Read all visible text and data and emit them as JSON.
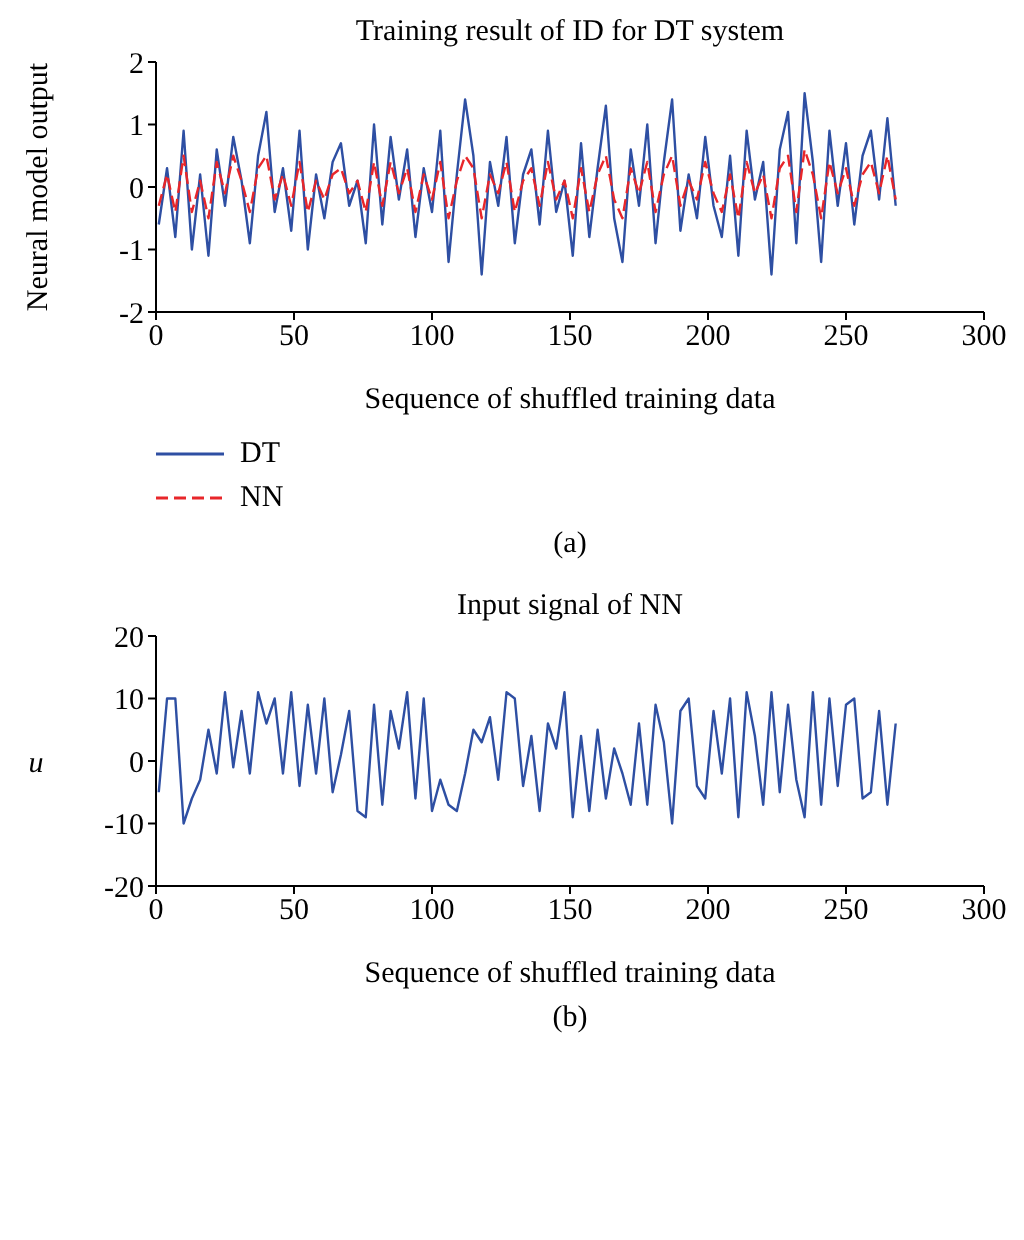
{
  "chart_data": [
    {
      "type": "line",
      "title": "Training result of ID for DT system",
      "xlabel": "Sequence of shuffled training data",
      "ylabel": "Neural model output",
      "xlim": [
        0,
        300
      ],
      "xticks": [
        0,
        50,
        100,
        150,
        200,
        250,
        300
      ],
      "ylim": [
        -2,
        2
      ],
      "yticks": [
        -2,
        -1,
        0,
        1,
        2
      ],
      "legend": "bottom left",
      "marker": "none",
      "annotations": [
        "(a)"
      ],
      "x": [
        1,
        4,
        7,
        10,
        13,
        16,
        19,
        22,
        25,
        28,
        31,
        34,
        37,
        40,
        43,
        46,
        49,
        52,
        55,
        58,
        61,
        64,
        67,
        70,
        73,
        76,
        79,
        82,
        85,
        88,
        91,
        94,
        97,
        100,
        103,
        106,
        109,
        112,
        115,
        118,
        121,
        124,
        127,
        130,
        133,
        136,
        139,
        142,
        145,
        148,
        151,
        154,
        157,
        160,
        163,
        166,
        169,
        172,
        175,
        178,
        181,
        184,
        187,
        190,
        193,
        196,
        199,
        202,
        205,
        208,
        211,
        214,
        217,
        220,
        223,
        226,
        229,
        232,
        235,
        238,
        241,
        244,
        247,
        250,
        253,
        256,
        259,
        262,
        265,
        268
      ],
      "series": [
        {
          "name": "DT",
          "color": "#2e4fa3",
          "line_style": "solid",
          "values": [
            -0.6,
            0.3,
            -0.8,
            0.9,
            -1.0,
            0.2,
            -1.1,
            0.6,
            -0.3,
            0.8,
            0.1,
            -0.9,
            0.5,
            1.2,
            -0.4,
            0.3,
            -0.7,
            0.9,
            -1.0,
            0.2,
            -0.5,
            0.4,
            0.7,
            -0.3,
            0.1,
            -0.9,
            1.0,
            -0.6,
            0.8,
            -0.2,
            0.6,
            -0.8,
            0.3,
            -0.4,
            0.9,
            -1.2,
            0.2,
            1.4,
            0.5,
            -1.4,
            0.4,
            -0.3,
            0.8,
            -0.9,
            0.2,
            0.6,
            -0.6,
            0.9,
            -0.4,
            0.1,
            -1.1,
            0.7,
            -0.8,
            0.3,
            1.3,
            -0.5,
            -1.2,
            0.6,
            -0.3,
            1.0,
            -0.9,
            0.4,
            1.4,
            -0.7,
            0.2,
            -0.5,
            0.8,
            -0.3,
            -0.8,
            0.5,
            -1.1,
            0.9,
            -0.2,
            0.4,
            -1.4,
            0.6,
            1.2,
            -0.9,
            1.5,
            0.4,
            -1.2,
            0.9,
            -0.3,
            0.7,
            -0.6,
            0.5,
            0.9,
            -0.2,
            1.1,
            -0.3
          ]
        },
        {
          "name": "NN",
          "color": "#e8262a",
          "line_style": "dashed",
          "values": [
            -0.3,
            0.2,
            -0.4,
            0.5,
            -0.4,
            0.1,
            -0.5,
            0.4,
            -0.1,
            0.5,
            0.1,
            -0.4,
            0.3,
            0.5,
            -0.2,
            0.2,
            -0.3,
            0.4,
            -0.4,
            0.1,
            -0.2,
            0.2,
            0.3,
            -0.1,
            0.1,
            -0.4,
            0.4,
            -0.3,
            0.4,
            -0.1,
            0.3,
            -0.4,
            0.2,
            -0.2,
            0.4,
            -0.5,
            0.1,
            0.5,
            0.3,
            -0.5,
            0.2,
            -0.1,
            0.4,
            -0.4,
            0.1,
            0.3,
            -0.3,
            0.4,
            -0.2,
            0.1,
            -0.5,
            0.3,
            -0.4,
            0.2,
            0.5,
            -0.2,
            -0.5,
            0.3,
            -0.1,
            0.4,
            -0.4,
            0.2,
            0.5,
            -0.3,
            0.1,
            -0.2,
            0.4,
            -0.1,
            -0.4,
            0.2,
            -0.5,
            0.4,
            -0.1,
            0.2,
            -0.5,
            0.3,
            0.5,
            -0.4,
            0.6,
            0.2,
            -0.5,
            0.4,
            -0.1,
            0.3,
            -0.3,
            0.2,
            0.4,
            -0.1,
            0.5,
            -0.2
          ]
        }
      ]
    },
    {
      "type": "line",
      "title": "Input signal of NN",
      "xlabel": "Sequence of shuffled training data",
      "ylabel": "u",
      "xlim": [
        0,
        300
      ],
      "xticks": [
        0,
        50,
        100,
        150,
        200,
        250,
        300
      ],
      "ylim": [
        -20,
        20
      ],
      "yticks": [
        -20,
        -10,
        0,
        10,
        20
      ],
      "legend": false,
      "marker": "none",
      "annotations": [
        "(b)"
      ],
      "x": [
        1,
        4,
        7,
        10,
        13,
        16,
        19,
        22,
        25,
        28,
        31,
        34,
        37,
        40,
        43,
        46,
        49,
        52,
        55,
        58,
        61,
        64,
        67,
        70,
        73,
        76,
        79,
        82,
        85,
        88,
        91,
        94,
        97,
        100,
        103,
        106,
        109,
        112,
        115,
        118,
        121,
        124,
        127,
        130,
        133,
        136,
        139,
        142,
        145,
        148,
        151,
        154,
        157,
        160,
        163,
        166,
        169,
        172,
        175,
        178,
        181,
        184,
        187,
        190,
        193,
        196,
        199,
        202,
        205,
        208,
        211,
        214,
        217,
        220,
        223,
        226,
        229,
        232,
        235,
        238,
        241,
        244,
        247,
        250,
        253,
        256,
        259,
        262,
        265,
        268
      ],
      "series": [
        {
          "color": "#2e4fa3",
          "line_style": "solid",
          "values": [
            -5,
            10,
            10,
            -10,
            -6,
            -3,
            5,
            -2,
            11,
            -1,
            8,
            -2,
            11,
            6,
            10,
            -2,
            11,
            -4,
            9,
            -2,
            10,
            -5,
            1,
            8,
            -8,
            -9,
            9,
            -7,
            8,
            2,
            11,
            -6,
            10,
            -8,
            -3,
            -7,
            -8,
            -2,
            5,
            3,
            7,
            -3,
            11,
            10,
            -4,
            4,
            -8,
            6,
            2,
            11,
            -9,
            4,
            -8,
            5,
            -6,
            2,
            -2,
            -7,
            6,
            -7,
            9,
            3,
            -10,
            8,
            10,
            -4,
            -6,
            8,
            -2,
            10,
            -9,
            11,
            4,
            -7,
            11,
            -5,
            9,
            -3,
            -9,
            11,
            -7,
            10,
            -4,
            9,
            10,
            -6,
            -5,
            8,
            -7,
            6
          ]
        }
      ]
    }
  ]
}
